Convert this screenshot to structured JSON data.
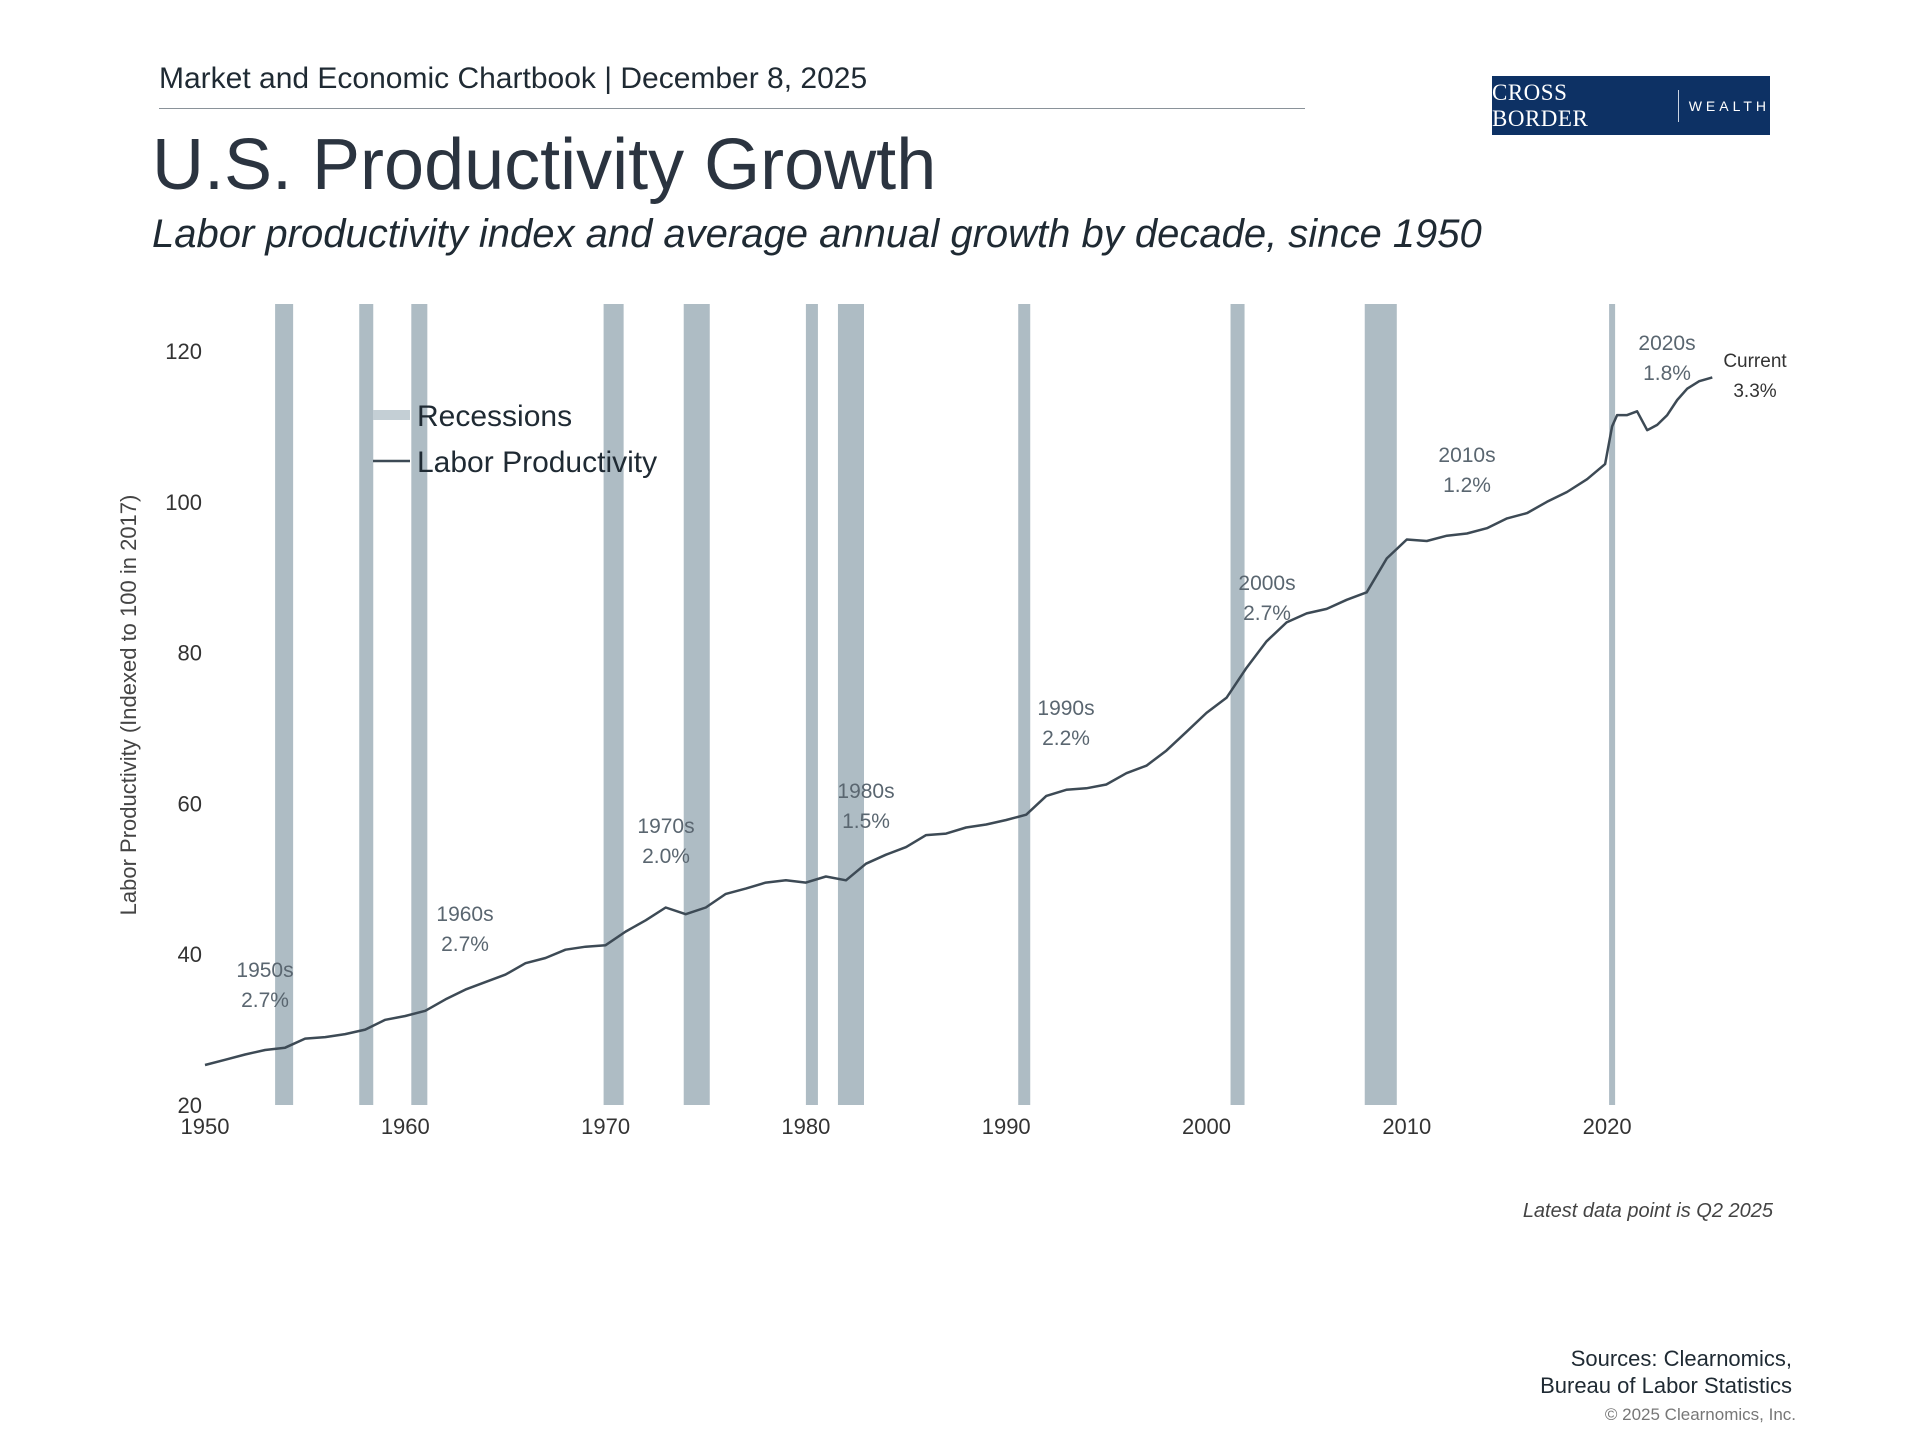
{
  "header": {
    "chartbook": "Market and Economic Chartbook | December 8, 2025",
    "title": "U.S. Productivity Growth",
    "subtitle": "Labor productivity index and average annual growth by decade, since 1950"
  },
  "logo": {
    "name": "CROSS BORDER",
    "tagline": "WEALTH",
    "color": "#0d3164"
  },
  "footer": {
    "note": "Latest data point is Q2 2025",
    "sources_line1": "Sources: Clearnomics,",
    "sources_line2": "Bureau of Labor Statistics",
    "copyright": "© 2025 Clearnomics, Inc."
  },
  "chart_data": {
    "type": "line",
    "title": "",
    "xlabel": "",
    "ylabel": "Labor Productivity (Indexed to 100 in 2017)",
    "xlim": [
      1950,
      2027
    ],
    "ylim": [
      20,
      125
    ],
    "x_ticks": [
      "1950",
      "1960",
      "1970",
      "1980",
      "1990",
      "2000",
      "2010",
      "2020"
    ],
    "y_ticks": [
      "20",
      "40",
      "60",
      "80",
      "100",
      "120"
    ],
    "grid": false,
    "legend": {
      "placement": "top-left",
      "entries": [
        "Recessions",
        "Labor Productivity"
      ]
    },
    "colors": {
      "line": "#3d4a55",
      "recession": "#aebcc4",
      "annotation": "#5a6670"
    },
    "recessions": [
      [
        1953.5,
        1954.4
      ],
      [
        1957.7,
        1958.4
      ],
      [
        1960.3,
        1961.1
      ],
      [
        1969.9,
        1970.9
      ],
      [
        1973.9,
        1975.2
      ],
      [
        1980.0,
        1980.6
      ],
      [
        1981.6,
        1982.9
      ],
      [
        1990.6,
        1991.2
      ],
      [
        2001.2,
        2001.9
      ],
      [
        2007.9,
        2009.5
      ],
      [
        2020.1,
        2020.4
      ]
    ],
    "series": [
      {
        "name": "Labor Productivity",
        "x": [
          1950,
          1951,
          1952,
          1953,
          1954,
          1955,
          1956,
          1957,
          1958,
          1959,
          1960,
          1961,
          1962,
          1963,
          1964,
          1965,
          1966,
          1967,
          1968,
          1969,
          1970,
          1971,
          1972,
          1973,
          1974,
          1975,
          1976,
          1977,
          1978,
          1979,
          1980,
          1981,
          1982,
          1983,
          1984,
          1985,
          1986,
          1987,
          1988,
          1989,
          1990,
          1991,
          1992,
          1993,
          1994,
          1995,
          1996,
          1997,
          1998,
          1999,
          2000,
          2001,
          2002,
          2003,
          2004,
          2005,
          2006,
          2007,
          2008,
          2009,
          2010,
          2011,
          2012,
          2013,
          2014,
          2015,
          2016,
          2017,
          2018,
          2019,
          2019.9,
          2020.25,
          2020.5,
          2021,
          2021.5,
          2022,
          2022.5,
          2023,
          2023.5,
          2024,
          2024.6,
          2025.25
        ],
        "y": [
          25.3,
          26,
          26.7,
          27.3,
          27.6,
          28.8,
          29,
          29.4,
          30,
          31.3,
          31.8,
          32.5,
          34,
          35.3,
          36.3,
          37.3,
          38.8,
          39.5,
          40.6,
          41,
          41.2,
          43,
          44.5,
          46.2,
          45.3,
          46.2,
          48,
          48.7,
          49.5,
          49.8,
          49.5,
          50.3,
          49.8,
          52,
          53.2,
          54.2,
          55.8,
          56,
          56.8,
          57.2,
          57.8,
          58.5,
          61,
          61.8,
          62,
          62.5,
          64,
          65,
          67,
          69.5,
          72,
          74,
          78,
          81.5,
          84,
          85.2,
          85.8,
          87,
          88,
          92.5,
          95,
          94.8,
          95.5,
          95.8,
          96.5,
          97.8,
          98.5,
          100,
          101.3,
          103,
          105,
          110,
          111.5,
          111.5,
          112,
          109.5,
          110.2,
          111.5,
          113.5,
          115,
          116,
          116.5
        ]
      }
    ],
    "annotations": [
      {
        "decade": "1950s",
        "growth": "2.7%"
      },
      {
        "decade": "1960s",
        "growth": "2.7%"
      },
      {
        "decade": "1970s",
        "growth": "2.0%"
      },
      {
        "decade": "1980s",
        "growth": "1.5%"
      },
      {
        "decade": "1990s",
        "growth": "2.2%"
      },
      {
        "decade": "2000s",
        "growth": "2.7%"
      },
      {
        "decade": "2010s",
        "growth": "1.2%"
      },
      {
        "decade": "2020s",
        "growth": "1.8%"
      },
      {
        "decade": "Current",
        "growth": "3.3%"
      }
    ]
  }
}
